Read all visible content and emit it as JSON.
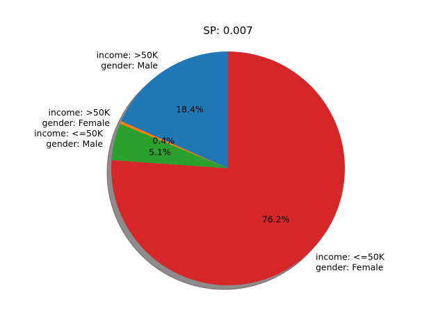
{
  "chart_data": {
    "type": "pie",
    "title": "SP: 0.007",
    "start_angle_deg": 90,
    "direction": "counterclockwise",
    "shadow": true,
    "slices": [
      {
        "label_lines": [
          "income: >50K",
          "gender: Male"
        ],
        "value": 18.4,
        "pct_label": "18.4%",
        "color": "#1f77b4"
      },
      {
        "label_lines": [
          "income: >50K",
          "gender: Female"
        ],
        "value": 0.4,
        "pct_label": "0.4%",
        "color": "#ff7f0e"
      },
      {
        "label_lines": [
          "income: <=50K",
          "gender: Male"
        ],
        "value": 5.1,
        "pct_label": "5.1%",
        "color": "#2ca02c"
      },
      {
        "label_lines": [
          "income: <=50K",
          "gender: Female"
        ],
        "value": 76.2,
        "pct_label": "76.2%",
        "color": "#d62728"
      }
    ]
  }
}
